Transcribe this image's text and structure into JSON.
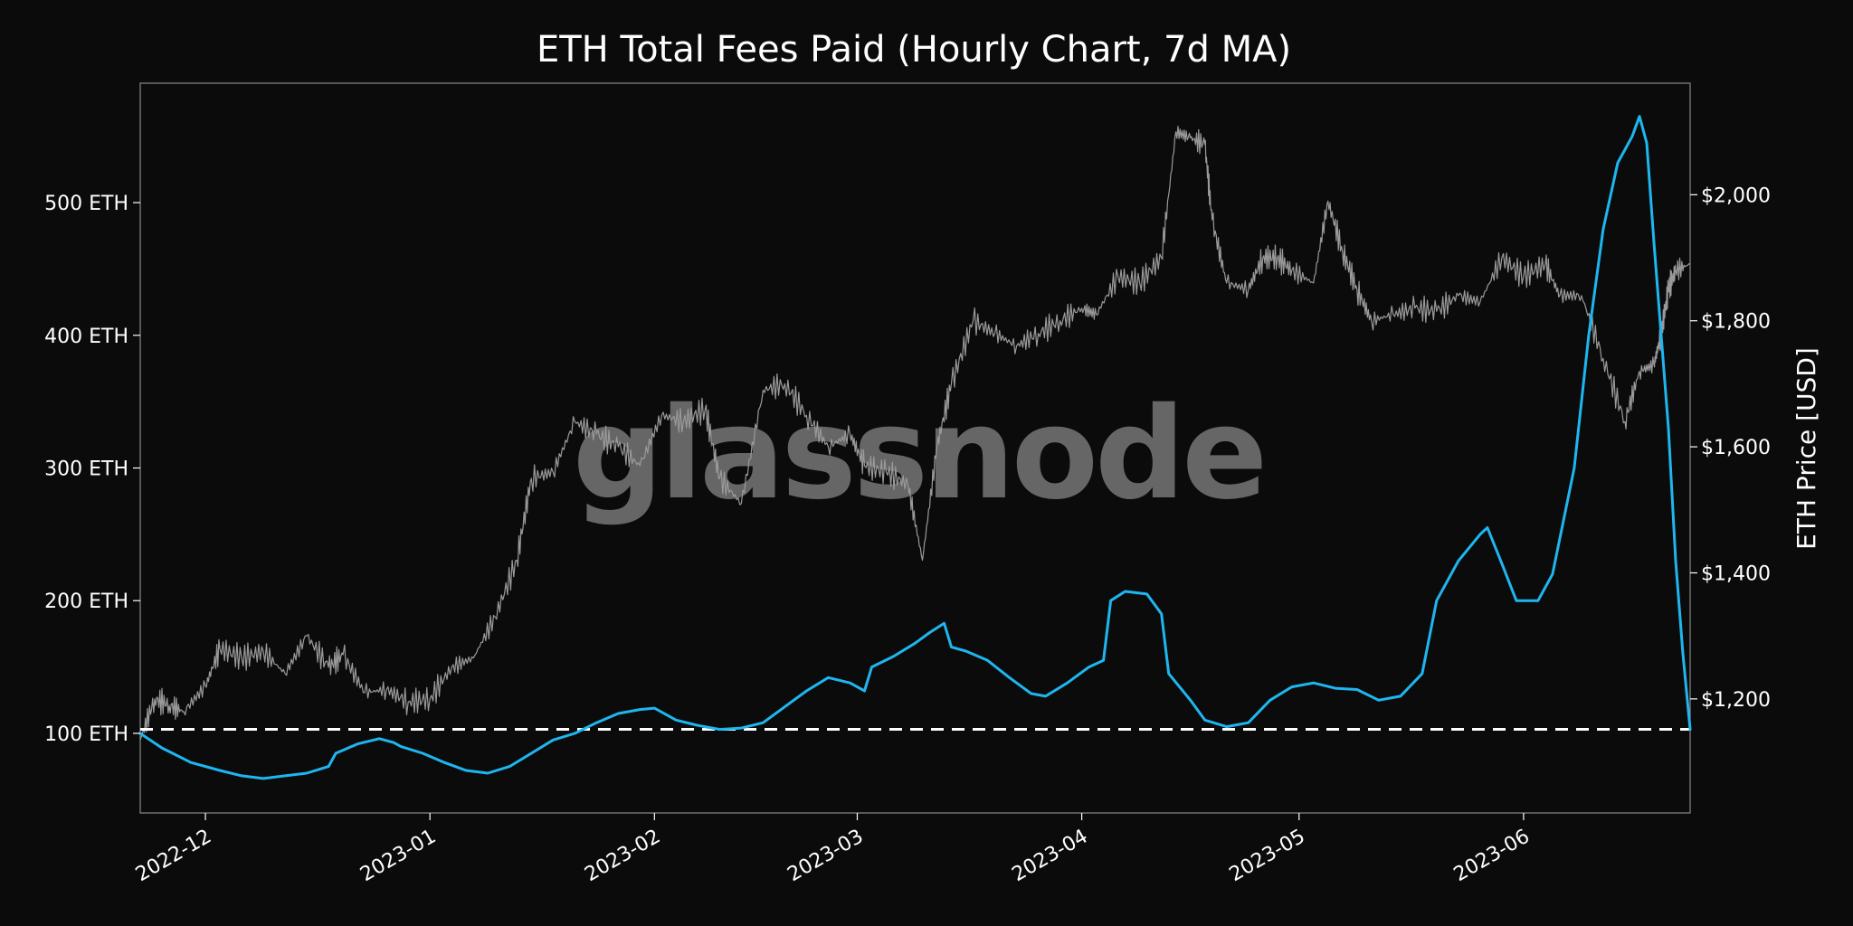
{
  "chart_data": {
    "type": "line",
    "title": "ETH Total Fees Paid (Hourly Chart, 7d MA)",
    "ylabel_right": "ETH Price [USD]",
    "watermark": "glassnode",
    "x_range": [
      "2022-11-22",
      "2023-06-24"
    ],
    "x_tick_labels": [
      "2022-12",
      "2023-01",
      "2023-02",
      "2023-03",
      "2023-04",
      "2023-05",
      "2023-06"
    ],
    "x_tick_dates": [
      "2022-12-01",
      "2023-01-01",
      "2023-02-01",
      "2023-03-01",
      "2023-04-01",
      "2023-05-01",
      "2023-06-01"
    ],
    "y_left": {
      "ticks": [
        100,
        200,
        300,
        400,
        500
      ],
      "tick_labels": [
        "100 ETH",
        "200 ETH",
        "300 ETH",
        "400 ETH",
        "500 ETH"
      ],
      "range": [
        40,
        590
      ]
    },
    "y_right": {
      "ticks": [
        1200,
        1400,
        1600,
        1800,
        2000
      ],
      "tick_labels": [
        "$1,200",
        "$1,400",
        "$1,600",
        "$1,800",
        "$2,000"
      ],
      "range": [
        1019,
        2177
      ]
    },
    "threshold_line": {
      "value": 103,
      "axis": "left",
      "style": "dashed",
      "color": "#ffffff"
    },
    "series": [
      {
        "axis": "left",
        "color": "#1fb6f0",
        "points": [
          [
            "2022-11-22",
            100
          ],
          [
            "2022-11-25",
            89
          ],
          [
            "2022-11-29",
            78
          ],
          [
            "2022-12-03",
            72
          ],
          [
            "2022-12-06",
            68
          ],
          [
            "2022-12-09",
            66
          ],
          [
            "2022-12-12",
            68
          ],
          [
            "2022-12-15",
            70
          ],
          [
            "2022-12-18",
            75
          ],
          [
            "2022-12-19",
            85
          ],
          [
            "2022-12-22",
            92
          ],
          [
            "2022-12-25",
            96
          ],
          [
            "2022-12-27",
            93
          ],
          [
            "2022-12-28",
            90
          ],
          [
            "2022-12-31",
            85
          ],
          [
            "2023-01-03",
            78
          ],
          [
            "2023-01-06",
            72
          ],
          [
            "2023-01-09",
            70
          ],
          [
            "2023-01-12",
            75
          ],
          [
            "2023-01-15",
            85
          ],
          [
            "2023-01-18",
            95
          ],
          [
            "2023-01-21",
            100
          ],
          [
            "2023-01-24",
            108
          ],
          [
            "2023-01-27",
            115
          ],
          [
            "2023-01-30",
            118
          ],
          [
            "2023-02-01",
            119
          ],
          [
            "2023-02-04",
            110
          ],
          [
            "2023-02-07",
            106
          ],
          [
            "2023-02-10",
            103
          ],
          [
            "2023-02-13",
            104
          ],
          [
            "2023-02-16",
            108
          ],
          [
            "2023-02-19",
            120
          ],
          [
            "2023-02-22",
            132
          ],
          [
            "2023-02-25",
            142
          ],
          [
            "2023-02-28",
            138
          ],
          [
            "2023-03-02",
            132
          ],
          [
            "2023-03-03",
            150
          ],
          [
            "2023-03-06",
            158
          ],
          [
            "2023-03-09",
            168
          ],
          [
            "2023-03-11",
            176
          ],
          [
            "2023-03-13",
            183
          ],
          [
            "2023-03-14",
            165
          ],
          [
            "2023-03-16",
            162
          ],
          [
            "2023-03-19",
            155
          ],
          [
            "2023-03-22",
            142
          ],
          [
            "2023-03-25",
            130
          ],
          [
            "2023-03-27",
            128
          ],
          [
            "2023-03-30",
            138
          ],
          [
            "2023-04-02",
            150
          ],
          [
            "2023-04-04",
            155
          ],
          [
            "2023-04-05",
            200
          ],
          [
            "2023-04-07",
            207
          ],
          [
            "2023-04-10",
            205
          ],
          [
            "2023-04-12",
            190
          ],
          [
            "2023-04-13",
            145
          ],
          [
            "2023-04-16",
            125
          ],
          [
            "2023-04-18",
            110
          ],
          [
            "2023-04-21",
            105
          ],
          [
            "2023-04-24",
            108
          ],
          [
            "2023-04-27",
            125
          ],
          [
            "2023-04-30",
            135
          ],
          [
            "2023-05-03",
            138
          ],
          [
            "2023-05-06",
            134
          ],
          [
            "2023-05-09",
            133
          ],
          [
            "2023-05-12",
            125
          ],
          [
            "2023-05-15",
            128
          ],
          [
            "2023-05-18",
            145
          ],
          [
            "2023-05-20",
            200
          ],
          [
            "2023-05-23",
            230
          ],
          [
            "2023-05-26",
            250
          ],
          [
            "2023-05-27",
            255
          ],
          [
            "2023-05-29",
            228
          ],
          [
            "2023-05-31",
            200
          ],
          [
            "2023-06-03",
            200
          ],
          [
            "2023-06-05",
            220
          ],
          [
            "2023-06-08",
            300
          ],
          [
            "2023-06-10",
            400
          ],
          [
            "2023-06-12",
            480
          ],
          [
            "2023-06-14",
            530
          ],
          [
            "2023-06-16",
            550
          ],
          [
            "2023-06-17",
            565
          ],
          [
            "2023-06-18",
            545
          ],
          [
            "2023-06-19",
            470
          ],
          [
            "2023-06-20",
            400
          ],
          [
            "2023-06-21",
            330
          ],
          [
            "2023-06-22",
            230
          ],
          [
            "2023-06-23",
            160
          ],
          [
            "2023-06-24",
            103
          ]
        ]
      },
      {
        "axis": "right",
        "color": "#9a9a9a",
        "points": [
          [
            "2022-11-22",
            1135
          ],
          [
            "2022-11-24",
            1200
          ],
          [
            "2022-11-26",
            1190
          ],
          [
            "2022-11-28",
            1180
          ],
          [
            "2022-12-01",
            1220
          ],
          [
            "2022-12-03",
            1280
          ],
          [
            "2022-12-06",
            1265
          ],
          [
            "2022-12-09",
            1275
          ],
          [
            "2022-12-12",
            1240
          ],
          [
            "2022-12-15",
            1300
          ],
          [
            "2022-12-18",
            1250
          ],
          [
            "2022-12-20",
            1270
          ],
          [
            "2022-12-23",
            1210
          ],
          [
            "2022-12-26",
            1215
          ],
          [
            "2022-12-29",
            1195
          ],
          [
            "2023-01-01",
            1200
          ],
          [
            "2023-01-04",
            1250
          ],
          [
            "2023-01-07",
            1265
          ],
          [
            "2023-01-10",
            1330
          ],
          [
            "2023-01-13",
            1420
          ],
          [
            "2023-01-15",
            1550
          ],
          [
            "2023-01-18",
            1560
          ],
          [
            "2023-01-21",
            1640
          ],
          [
            "2023-01-24",
            1620
          ],
          [
            "2023-01-27",
            1600
          ],
          [
            "2023-01-30",
            1570
          ],
          [
            "2023-02-02",
            1650
          ],
          [
            "2023-02-05",
            1640
          ],
          [
            "2023-02-08",
            1660
          ],
          [
            "2023-02-10",
            1550
          ],
          [
            "2023-02-13",
            1510
          ],
          [
            "2023-02-16",
            1690
          ],
          [
            "2023-02-19",
            1700
          ],
          [
            "2023-02-22",
            1650
          ],
          [
            "2023-02-25",
            1600
          ],
          [
            "2023-02-28",
            1620
          ],
          [
            "2023-03-02",
            1570
          ],
          [
            "2023-03-05",
            1560
          ],
          [
            "2023-03-08",
            1540
          ],
          [
            "2023-03-10",
            1420
          ],
          [
            "2023-03-12",
            1600
          ],
          [
            "2023-03-14",
            1700
          ],
          [
            "2023-03-17",
            1800
          ],
          [
            "2023-03-20",
            1780
          ],
          [
            "2023-03-23",
            1760
          ],
          [
            "2023-03-26",
            1780
          ],
          [
            "2023-03-29",
            1800
          ],
          [
            "2023-04-01",
            1820
          ],
          [
            "2023-04-03",
            1810
          ],
          [
            "2023-04-06",
            1870
          ],
          [
            "2023-04-09",
            1860
          ],
          [
            "2023-04-12",
            1900
          ],
          [
            "2023-04-14",
            2100
          ],
          [
            "2023-04-16",
            2090
          ],
          [
            "2023-04-18",
            2080
          ],
          [
            "2023-04-19",
            1960
          ],
          [
            "2023-04-21",
            1860
          ],
          [
            "2023-04-24",
            1850
          ],
          [
            "2023-04-26",
            1900
          ],
          [
            "2023-04-28",
            1900
          ],
          [
            "2023-04-30",
            1880
          ],
          [
            "2023-05-03",
            1860
          ],
          [
            "2023-05-05",
            1990
          ],
          [
            "2023-05-07",
            1910
          ],
          [
            "2023-05-09",
            1850
          ],
          [
            "2023-05-11",
            1800
          ],
          [
            "2023-05-14",
            1810
          ],
          [
            "2023-05-17",
            1820
          ],
          [
            "2023-05-20",
            1815
          ],
          [
            "2023-05-23",
            1840
          ],
          [
            "2023-05-26",
            1830
          ],
          [
            "2023-05-29",
            1900
          ],
          [
            "2023-06-01",
            1870
          ],
          [
            "2023-06-04",
            1890
          ],
          [
            "2023-06-06",
            1840
          ],
          [
            "2023-06-09",
            1840
          ],
          [
            "2023-06-12",
            1740
          ],
          [
            "2023-06-15",
            1640
          ],
          [
            "2023-06-17",
            1720
          ],
          [
            "2023-06-19",
            1730
          ],
          [
            "2023-06-20",
            1780
          ],
          [
            "2023-06-21",
            1850
          ],
          [
            "2023-06-22",
            1880
          ],
          [
            "2023-06-24",
            1890
          ]
        ]
      }
    ]
  }
}
